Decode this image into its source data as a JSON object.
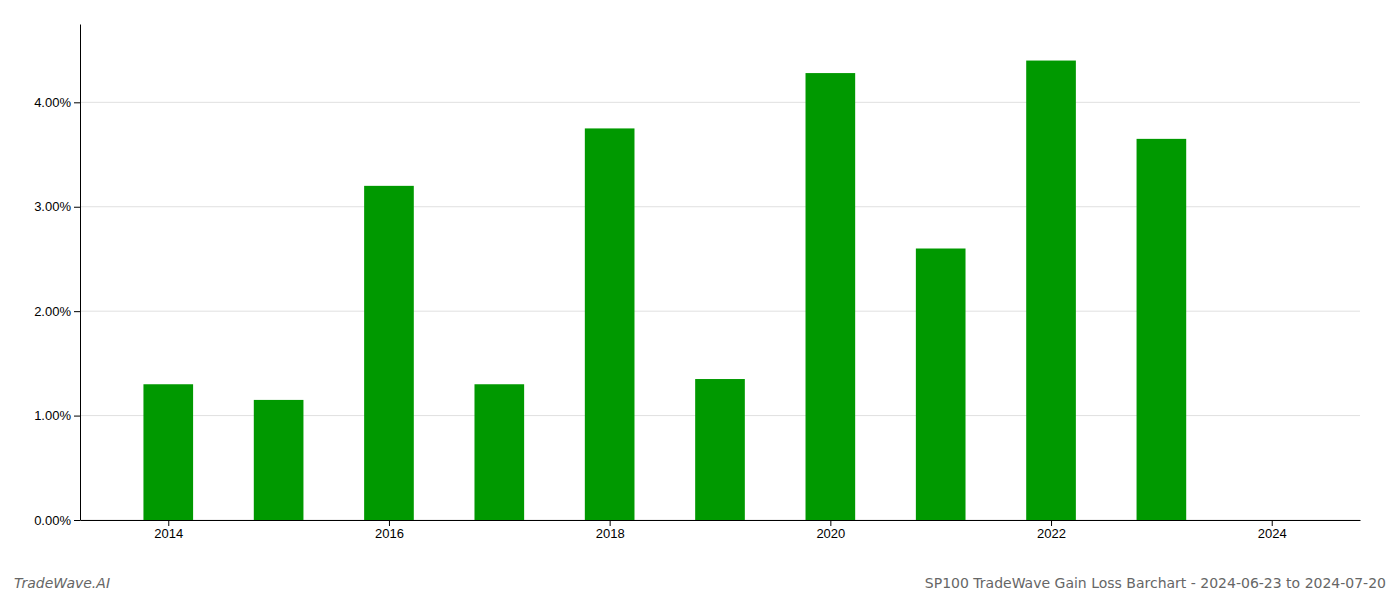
{
  "chart_data": {
    "type": "bar",
    "x": [
      2014,
      2015,
      2016,
      2017,
      2018,
      2019,
      2020,
      2021,
      2022,
      2023
    ],
    "values": [
      0.013,
      0.0115,
      0.032,
      0.013,
      0.0375,
      0.0135,
      0.0428,
      0.026,
      0.044,
      0.0365
    ],
    "color": "#009900",
    "xlim": [
      2013.2,
      2024.8
    ],
    "xticks": [
      2014,
      2016,
      2018,
      2020,
      2022,
      2024
    ],
    "ylim": [
      0,
      0.0475
    ],
    "yticks": [
      {
        "value": 0.0,
        "label": "0.00%"
      },
      {
        "value": 0.01,
        "label": "1.00%"
      },
      {
        "value": 0.02,
        "label": "2.00%"
      },
      {
        "value": 0.03,
        "label": "3.00%"
      },
      {
        "value": 0.04,
        "label": "4.00%"
      }
    ],
    "grid": true,
    "annotations": [
      "TradeWave.AI",
      "SP100 TradeWave Gain Loss Barchart - 2024-06-23 to 2024-07-20"
    ]
  }
}
